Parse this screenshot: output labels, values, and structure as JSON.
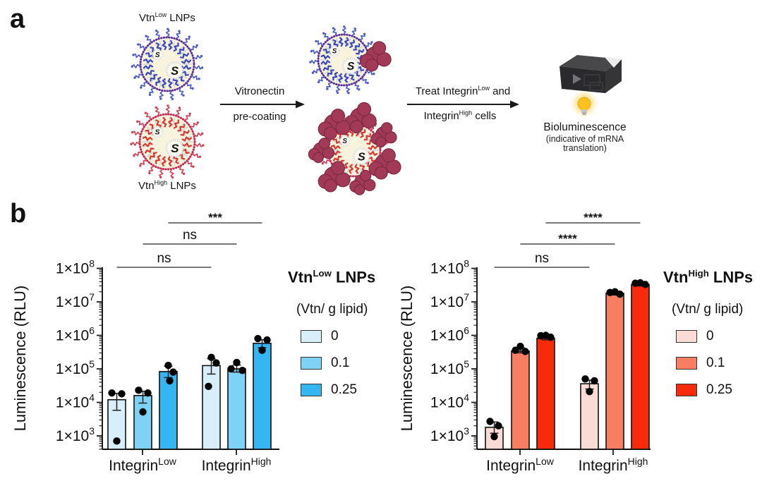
{
  "panel_a": {
    "label": "a",
    "lnp_low_label": {
      "pre": "Vtn",
      "sup": "Low",
      "post": " LNPs"
    },
    "lnp_high_label": {
      "pre": "Vtn",
      "sup": "High",
      "post": " LNPs"
    },
    "step1": {
      "top": "Vitronectin",
      "bottom": "pre-coating"
    },
    "step2": {
      "top_pre": "Treat Integrin",
      "top_sup": "Low",
      "top_post": " and",
      "bottom_pre": "Integrin",
      "bottom_sup": "High",
      "bottom_post": " cells"
    },
    "readout": {
      "title": "Bioluminescence",
      "subtitle_line1": "(indicative of mRNA",
      "subtitle_line2": "translation)"
    },
    "colors": {
      "lnp_low_membrane": "#5e3196",
      "lnp_low_tail": "#3a49b8",
      "lnp_high_membrane": "#c52a52",
      "lnp_high_tail": "#d8392c",
      "vitronectin_blob": "#a23a57",
      "lnp_body_fill": "#f7f3dd"
    }
  },
  "panel_b": {
    "label": "b"
  },
  "chart_data": [
    {
      "type": "bar",
      "yscale": "log",
      "title": "Vtn-Low LNPs",
      "xlabel": "",
      "ylabel": "Luminescence (RLU)",
      "ylim": [
        1000,
        100000000
      ],
      "ytick_labels": [
        "1×10³",
        "1×10⁴",
        "1×10⁵",
        "1×10⁶",
        "1×10⁷",
        "1×10⁸"
      ],
      "ytick_exponents": [
        3,
        4,
        5,
        6,
        7,
        8
      ],
      "groups": [
        {
          "pre": "Integrin",
          "sup": "Low"
        },
        {
          "pre": "Integrin",
          "sup": "High"
        }
      ],
      "legend": {
        "title_pre": "Vtn",
        "title_sup": "Low",
        "title_post": " LNPs",
        "subtitle": "(Vtn/ g lipid)",
        "items": [
          {
            "label": "0",
            "color": "#d8eefb"
          },
          {
            "label": "0.1",
            "color": "#7dd2f6"
          },
          {
            "label": "0.25",
            "color": "#35b5f2"
          }
        ]
      },
      "bars": [
        {
          "group": 0,
          "dose": "0",
          "mean": 12000,
          "err": [
            5800,
            18500
          ],
          "points": [
            [
              -7,
              19000
            ],
            [
              7,
              18000
            ],
            [
              0,
              700
            ]
          ]
        },
        {
          "group": 0,
          "dose": "0.1",
          "mean": 16000,
          "err": [
            9500,
            21500
          ],
          "points": [
            [
              -6,
              23000
            ],
            [
              7,
              19000
            ],
            [
              0,
              5200
            ]
          ]
        },
        {
          "group": 0,
          "dose": "0.25",
          "mean": 83000,
          "err": [
            55000,
            120000
          ],
          "points": [
            [
              0,
              127000
            ],
            [
              7,
              80000
            ],
            [
              2,
              44000
            ]
          ]
        },
        {
          "group": 1,
          "dose": "0",
          "mean": 125000,
          "err": [
            70000,
            200000
          ],
          "points": [
            [
              0,
              220000
            ],
            [
              7,
              150000
            ],
            [
              -4,
              30000
            ]
          ]
        },
        {
          "group": 1,
          "dose": "0.1",
          "mean": 100000,
          "err": [
            80000,
            130000
          ],
          "points": [
            [
              0,
              155000
            ],
            [
              -8,
              100000
            ],
            [
              8,
              90000
            ]
          ]
        },
        {
          "group": 1,
          "dose": "0.25",
          "mean": 580000,
          "err": [
            430000,
            740000
          ],
          "points": [
            [
              -6,
              800000
            ],
            [
              7,
              730000
            ],
            [
              0,
              360000
            ]
          ]
        }
      ],
      "comparisons": [
        {
          "a": 0,
          "b": 3,
          "label": "ns"
        },
        {
          "a": 1,
          "b": 4,
          "label": "ns"
        },
        {
          "a": 2,
          "b": 5,
          "label": "***"
        }
      ]
    },
    {
      "type": "bar",
      "yscale": "log",
      "title": "Vtn-High LNPs",
      "xlabel": "",
      "ylabel": "Luminescence (RLU)",
      "ylim": [
        1000,
        100000000
      ],
      "ytick_labels": [
        "1×10³",
        "1×10⁴",
        "1×10⁵",
        "1×10⁶",
        "1×10⁷",
        "1×10⁸"
      ],
      "ytick_exponents": [
        3,
        4,
        5,
        6,
        7,
        8
      ],
      "groups": [
        {
          "pre": "Integrin",
          "sup": "Low"
        },
        {
          "pre": "Integrin",
          "sup": "High"
        }
      ],
      "legend": {
        "title_pre": "Vtn",
        "title_sup": "High",
        "title_post": " LNPs",
        "subtitle": "(Vtn/ g lipid)",
        "items": [
          {
            "label": "0",
            "color": "#fadbd5"
          },
          {
            "label": "0.1",
            "color": "#f87e61"
          },
          {
            "label": "0.25",
            "color": "#f72a0c"
          }
        ]
      },
      "bars": [
        {
          "group": 0,
          "dose": "0",
          "mean": 1800,
          "err": [
            1200,
            2600
          ],
          "points": [
            [
              -6,
              2700
            ],
            [
              6,
              2000
            ],
            [
              0,
              950
            ]
          ]
        },
        {
          "group": 0,
          "dose": "0.1",
          "mean": 340000,
          "err": [
            300000,
            430000
          ],
          "points": [
            [
              0,
              470000
            ],
            [
              -7,
              360000
            ],
            [
              7,
              330000
            ]
          ]
        },
        {
          "group": 0,
          "dose": "0.25",
          "mean": 820000,
          "err": [
            740000,
            960000
          ],
          "points": [
            [
              -7,
              980000
            ],
            [
              0,
              1000000
            ],
            [
              7,
              880000
            ]
          ]
        },
        {
          "group": 1,
          "dose": "0",
          "mean": 36000,
          "err": [
            25000,
            46000
          ],
          "points": [
            [
              -6,
              50000
            ],
            [
              7,
              44000
            ],
            [
              0,
              21000
            ]
          ]
        },
        {
          "group": 1,
          "dose": "0.1",
          "mean": 18000000,
          "err": [
            16000000,
            20500000
          ],
          "points": [
            [
              -7,
              19000000
            ],
            [
              0,
              20000000
            ],
            [
              7,
              17000000
            ]
          ]
        },
        {
          "group": 1,
          "dose": "0.25",
          "mean": 33000000,
          "err": [
            30000000,
            37000000
          ],
          "points": [
            [
              -7,
              36000000
            ],
            [
              0,
              37000000
            ],
            [
              7,
              33000000
            ]
          ]
        }
      ],
      "comparisons": [
        {
          "a": 0,
          "b": 3,
          "label": "ns"
        },
        {
          "a": 1,
          "b": 4,
          "label": "****"
        },
        {
          "a": 2,
          "b": 5,
          "label": "****"
        }
      ]
    }
  ]
}
